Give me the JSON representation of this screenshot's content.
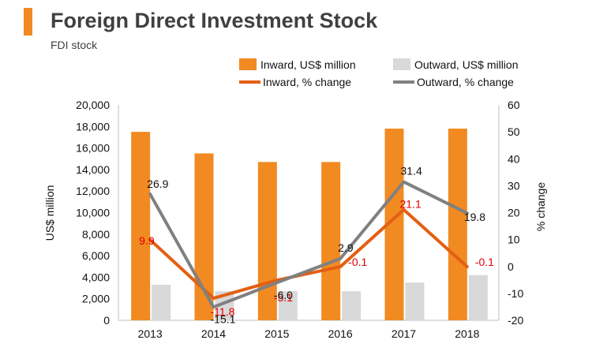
{
  "header": {
    "title": "Foreign Direct Investment Stock",
    "subtitle": "FDI stock"
  },
  "colors": {
    "accent": "#f28a22",
    "inward_bar": "#f28a22",
    "outward_bar": "#d9d9d9",
    "inward_line": "#e35f12",
    "outward_line": "#808080",
    "inward_label": "#e00000",
    "outward_label": "#111111"
  },
  "chart_data": {
    "type": "bar",
    "title": "Foreign Direct Investment Stock",
    "subtitle": "FDI stock",
    "categories": [
      "2013",
      "2014",
      "2015",
      "2016",
      "2017",
      "2018"
    ],
    "ylabel": "US$ million",
    "y2label": "% change",
    "ylim": [
      0,
      20000
    ],
    "y2lim": [
      -20,
      60
    ],
    "yticks": [
      "0",
      "2,000",
      "4,000",
      "6,000",
      "8,000",
      "10,000",
      "12,000",
      "14,000",
      "16,000",
      "18,000",
      "20,000"
    ],
    "y2ticks": [
      "-20",
      "-10",
      "0",
      "10",
      "20",
      "30",
      "40",
      "50",
      "60"
    ],
    "grid": false,
    "legend_position": "top",
    "series": [
      {
        "name": "Inward, US$ million",
        "type": "bar",
        "axis": "left",
        "values": [
          17500,
          15500,
          14700,
          14700,
          17800,
          17800
        ]
      },
      {
        "name": "Outward, US$ million",
        "type": "bar",
        "axis": "left",
        "values": [
          3300,
          2700,
          2700,
          2700,
          3500,
          4200
        ]
      },
      {
        "name": "Inward, % change",
        "type": "line",
        "axis": "right",
        "values": [
          9.9,
          -11.8,
          -5.1,
          -0.1,
          21.1,
          -0.1
        ],
        "labels": [
          "9.9",
          "-11.8",
          "-5.1",
          "-0.1",
          "21.1",
          "-0.1"
        ]
      },
      {
        "name": "Outward, % change",
        "type": "line",
        "axis": "right",
        "values": [
          26.9,
          -15.1,
          -6.0,
          2.9,
          31.4,
          19.8
        ],
        "labels": [
          "26.9",
          "-15.1",
          "-6.0",
          "2.9",
          "31.4",
          "19.8"
        ]
      }
    ]
  }
}
